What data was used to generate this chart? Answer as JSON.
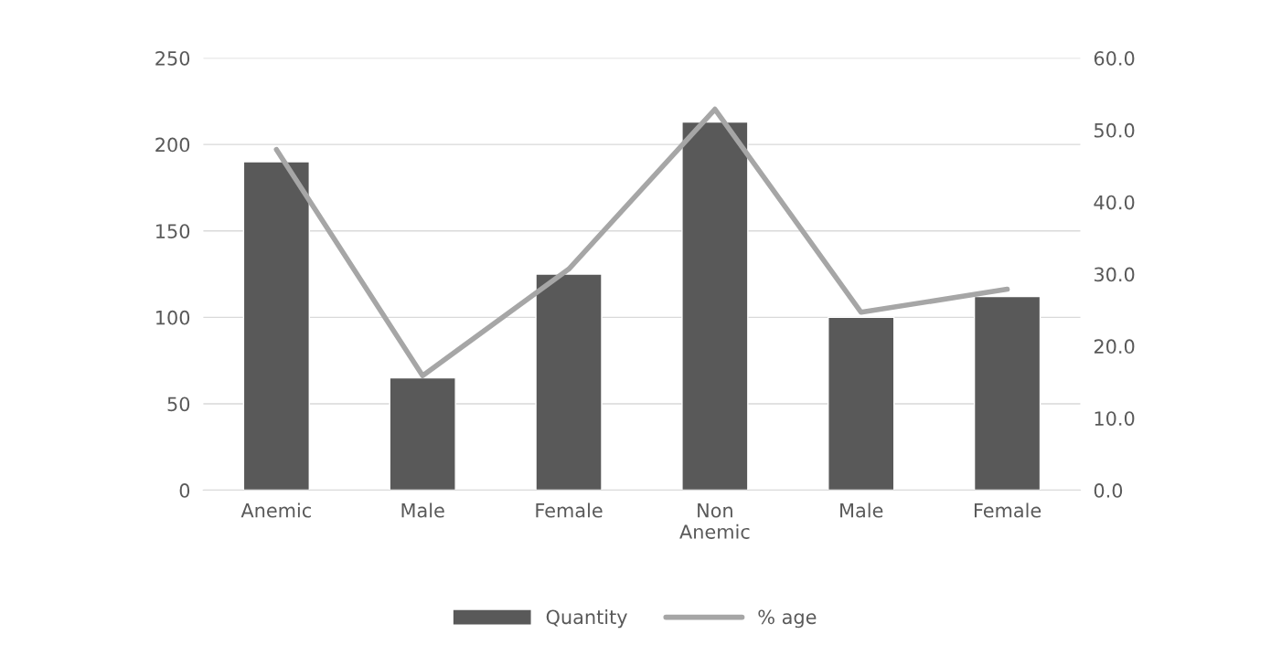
{
  "chart_data": {
    "type": "bar",
    "categories": [
      "Anemic",
      "Male",
      "Female",
      "Non\nAnemic",
      "Male",
      "Female"
    ],
    "series": [
      {
        "name": "Quantity",
        "color": "#595959",
        "values": [
          190,
          65,
          125,
          213,
          100,
          112
        ]
      },
      {
        "name": "% age",
        "type": "line",
        "axis": "y2",
        "color": "#a6a6a6",
        "values": [
          47.3,
          15.9,
          30.7,
          52.9,
          24.7,
          27.9
        ]
      }
    ],
    "ylim": [
      0,
      250
    ],
    "yticks": [
      0,
      50,
      100,
      150,
      200,
      250
    ],
    "y2lim": [
      0,
      60
    ],
    "y2ticks": [
      {
        "value": 0,
        "label": "0.0"
      },
      {
        "value": 10,
        "label": "10.0"
      },
      {
        "value": 20,
        "label": "20.0"
      },
      {
        "value": 30,
        "label": "30.0"
      },
      {
        "value": 40,
        "label": "40.0"
      },
      {
        "value": 50,
        "label": "50.0"
      },
      {
        "value": 60,
        "label": "60.0"
      }
    ],
    "grid": "y",
    "legend": "bottom",
    "marker": "none",
    "line_style": "solid"
  }
}
